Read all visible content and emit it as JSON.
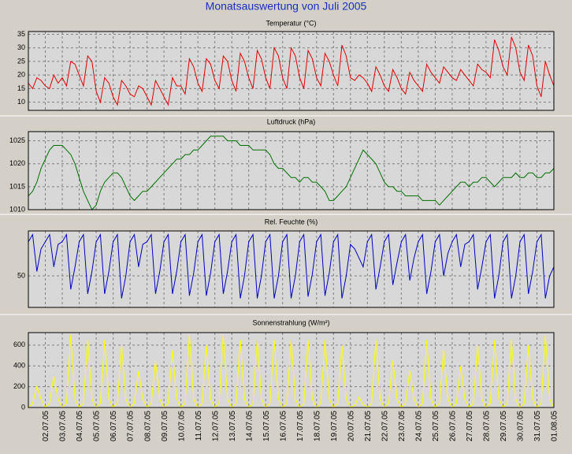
{
  "title": "Monatsauswertung von Juli 2005",
  "chart_data": [
    {
      "type": "line",
      "title": "Temperatur (°C)",
      "color": "#e00000",
      "xlim": [
        0,
        31
      ],
      "ylim": [
        7,
        36
      ],
      "yticks": [
        10,
        15,
        20,
        25,
        30,
        35
      ],
      "grid": true,
      "xticks": [
        1,
        2,
        3,
        4,
        5,
        6,
        7,
        8,
        9,
        10,
        11,
        12,
        13,
        14,
        15,
        16,
        17,
        18,
        19,
        20,
        21,
        22,
        23,
        24,
        25,
        26,
        27,
        28,
        29,
        30,
        31
      ],
      "x": [
        0,
        0.25,
        0.5,
        0.75,
        1,
        1.25,
        1.5,
        1.75,
        2,
        2.25,
        2.5,
        2.75,
        3,
        3.25,
        3.5,
        3.75,
        4,
        4.25,
        4.5,
        4.75,
        5,
        5.25,
        5.5,
        5.75,
        6,
        6.25,
        6.5,
        6.75,
        7,
        7.25,
        7.5,
        7.75,
        8,
        8.25,
        8.5,
        8.75,
        9,
        9.25,
        9.5,
        9.75,
        10,
        10.25,
        10.5,
        10.75,
        11,
        11.25,
        11.5,
        11.75,
        12,
        12.25,
        12.5,
        12.75,
        13,
        13.25,
        13.5,
        13.75,
        14,
        14.25,
        14.5,
        14.75,
        15,
        15.25,
        15.5,
        15.75,
        16,
        16.25,
        16.5,
        16.75,
        17,
        17.25,
        17.5,
        17.75,
        18,
        18.25,
        18.5,
        18.75,
        19,
        19.25,
        19.5,
        19.75,
        20,
        20.25,
        20.5,
        20.75,
        21,
        21.25,
        21.5,
        21.75,
        22,
        22.25,
        22.5,
        22.75,
        23,
        23.25,
        23.5,
        23.75,
        24,
        24.25,
        24.5,
        24.75,
        25,
        25.25,
        25.5,
        25.75,
        26,
        26.25,
        26.5,
        26.75,
        27,
        27.25,
        27.5,
        27.75,
        28,
        28.25,
        28.5,
        28.75,
        29,
        29.25,
        29.5,
        29.75,
        30,
        30.25,
        30.5,
        30.75,
        31
      ],
      "values": [
        17,
        15,
        19,
        18,
        16,
        15,
        20,
        17,
        19,
        16,
        25,
        24,
        20,
        16,
        27,
        25,
        14,
        10,
        19,
        17,
        12,
        9,
        18,
        16,
        13,
        12,
        16,
        15,
        12,
        9,
        18,
        15,
        12,
        9,
        19,
        16,
        16,
        13,
        26,
        23,
        17,
        14,
        26,
        24,
        18,
        15,
        27,
        25,
        18,
        14,
        28,
        25,
        19,
        15,
        29,
        26,
        19,
        15,
        30,
        27,
        19,
        15,
        30,
        27,
        19,
        15,
        29,
        26,
        19,
        16,
        28,
        25,
        20,
        16,
        31,
        27,
        19,
        18,
        20,
        19,
        17,
        14,
        23,
        20,
        16,
        14,
        22,
        19,
        15,
        13,
        21,
        18,
        16,
        14,
        24,
        21,
        19,
        17,
        23,
        21,
        19,
        18,
        22,
        20,
        18,
        16,
        24,
        22,
        21,
        19,
        33,
        29,
        23,
        20,
        34,
        30,
        21,
        18,
        31,
        27,
        16,
        12,
        25,
        20,
        16
      ]
    },
    {
      "type": "line",
      "title": "Luftdruck (hPa)",
      "color": "#007000",
      "xlim": [
        0,
        31
      ],
      "ylim": [
        1010,
        1027
      ],
      "yticks": [
        1010,
        1015,
        1020,
        1025
      ],
      "grid": true,
      "xticks": [
        1,
        2,
        3,
        4,
        5,
        6,
        7,
        8,
        9,
        10,
        11,
        12,
        13,
        14,
        15,
        16,
        17,
        18,
        19,
        20,
        21,
        22,
        23,
        24,
        25,
        26,
        27,
        28,
        29,
        30,
        31
      ],
      "x": [
        0,
        0.25,
        0.5,
        0.75,
        1,
        1.25,
        1.5,
        1.75,
        2,
        2.25,
        2.5,
        2.75,
        3,
        3.25,
        3.5,
        3.75,
        4,
        4.25,
        4.5,
        4.75,
        5,
        5.25,
        5.5,
        5.75,
        6,
        6.25,
        6.5,
        6.75,
        7,
        7.25,
        7.5,
        7.75,
        8,
        8.25,
        8.5,
        8.75,
        9,
        9.25,
        9.5,
        9.75,
        10,
        10.25,
        10.5,
        10.75,
        11,
        11.25,
        11.5,
        11.75,
        12,
        12.25,
        12.5,
        12.75,
        13,
        13.25,
        13.5,
        13.75,
        14,
        14.25,
        14.5,
        14.75,
        15,
        15.25,
        15.5,
        15.75,
        16,
        16.25,
        16.5,
        16.75,
        17,
        17.25,
        17.5,
        17.75,
        18,
        18.25,
        18.5,
        18.75,
        19,
        19.25,
        19.5,
        19.75,
        20,
        20.25,
        20.5,
        20.75,
        21,
        21.25,
        21.5,
        21.75,
        22,
        22.25,
        22.5,
        22.75,
        23,
        23.25,
        23.5,
        23.75,
        24,
        24.25,
        24.5,
        24.75,
        25,
        25.25,
        25.5,
        25.75,
        26,
        26.25,
        26.5,
        26.75,
        27,
        27.25,
        27.5,
        27.75,
        28,
        28.25,
        28.5,
        28.75,
        29,
        29.25,
        29.5,
        29.75,
        30,
        30.25,
        30.5,
        30.75,
        31
      ],
      "values": [
        1013,
        1014,
        1016,
        1019,
        1021,
        1023,
        1024,
        1024,
        1024,
        1023,
        1022,
        1020,
        1017,
        1014,
        1012,
        1010,
        1011,
        1014,
        1016,
        1017,
        1018,
        1018,
        1017,
        1015,
        1013,
        1012,
        1013,
        1014,
        1014,
        1015,
        1016,
        1017,
        1018,
        1019,
        1020,
        1021,
        1021,
        1022,
        1022,
        1023,
        1023,
        1024,
        1025,
        1026,
        1026,
        1026,
        1026,
        1025,
        1025,
        1025,
        1024,
        1024,
        1024,
        1023,
        1023,
        1023,
        1023,
        1022,
        1020,
        1019,
        1019,
        1018,
        1017,
        1017,
        1016,
        1017,
        1017,
        1016,
        1016,
        1015,
        1014,
        1012,
        1012,
        1013,
        1014,
        1015,
        1017,
        1019,
        1021,
        1023,
        1022,
        1021,
        1020,
        1018,
        1016,
        1015,
        1015,
        1014,
        1014,
        1013,
        1013,
        1013,
        1013,
        1012,
        1012,
        1012,
        1012,
        1011,
        1012,
        1013,
        1014,
        1015,
        1016,
        1016,
        1015,
        1016,
        1016,
        1017,
        1017,
        1016,
        1015,
        1016,
        1017,
        1017,
        1017,
        1018,
        1017,
        1017,
        1018,
        1018,
        1017,
        1017,
        1018,
        1018,
        1019
      ]
    },
    {
      "type": "line",
      "title": "Rel. Feuchte (%)",
      "color": "#0000c0",
      "xlim": [
        0,
        31
      ],
      "ylim": [
        15,
        100
      ],
      "yticks": [
        50
      ],
      "grid": true,
      "xticks": [
        1,
        2,
        3,
        4,
        5,
        6,
        7,
        8,
        9,
        10,
        11,
        12,
        13,
        14,
        15,
        16,
        17,
        18,
        19,
        20,
        21,
        22,
        23,
        24,
        25,
        26,
        27,
        28,
        29,
        30,
        31
      ],
      "x": [
        0,
        0.25,
        0.5,
        0.75,
        1,
        1.25,
        1.5,
        1.75,
        2,
        2.25,
        2.5,
        2.75,
        3,
        3.25,
        3.5,
        3.75,
        4,
        4.25,
        4.5,
        4.75,
        5,
        5.25,
        5.5,
        5.75,
        6,
        6.25,
        6.5,
        6.75,
        7,
        7.25,
        7.5,
        7.75,
        8,
        8.25,
        8.5,
        8.75,
        9,
        9.25,
        9.5,
        9.75,
        10,
        10.25,
        10.5,
        10.75,
        11,
        11.25,
        11.5,
        11.75,
        12,
        12.25,
        12.5,
        12.75,
        13,
        13.25,
        13.5,
        13.75,
        14,
        14.25,
        14.5,
        14.75,
        15,
        15.25,
        15.5,
        15.75,
        16,
        16.25,
        16.5,
        16.75,
        17,
        17.25,
        17.5,
        17.75,
        18,
        18.25,
        18.5,
        18.75,
        19,
        19.25,
        19.5,
        19.75,
        20,
        20.25,
        20.5,
        20.75,
        21,
        21.25,
        21.5,
        21.75,
        22,
        22.25,
        22.5,
        22.75,
        23,
        23.25,
        23.5,
        23.75,
        24,
        24.25,
        24.5,
        24.75,
        25,
        25.25,
        25.5,
        25.75,
        26,
        26.25,
        26.5,
        26.75,
        27,
        27.25,
        27.5,
        27.75,
        28,
        28.25,
        28.5,
        28.75,
        29,
        29.25,
        29.5,
        29.75,
        30,
        30.25,
        30.5,
        30.75,
        31
      ],
      "values": [
        88,
        96,
        55,
        80,
        88,
        96,
        60,
        85,
        88,
        96,
        35,
        60,
        88,
        96,
        30,
        55,
        88,
        96,
        30,
        55,
        88,
        96,
        25,
        50,
        88,
        96,
        60,
        85,
        88,
        96,
        30,
        55,
        88,
        96,
        30,
        55,
        88,
        96,
        28,
        53,
        88,
        96,
        28,
        53,
        88,
        96,
        30,
        55,
        88,
        96,
        25,
        50,
        88,
        96,
        25,
        50,
        88,
        96,
        25,
        50,
        88,
        96,
        25,
        50,
        88,
        96,
        27,
        52,
        88,
        96,
        28,
        53,
        88,
        96,
        25,
        50,
        85,
        80,
        70,
        60,
        88,
        96,
        35,
        60,
        88,
        96,
        40,
        65,
        88,
        96,
        45,
        70,
        88,
        96,
        30,
        55,
        88,
        96,
        50,
        75,
        88,
        96,
        60,
        85,
        88,
        96,
        35,
        60,
        88,
        96,
        25,
        50,
        88,
        96,
        25,
        50,
        88,
        96,
        30,
        55,
        88,
        96,
        25,
        50,
        60
      ]
    },
    {
      "type": "line",
      "title": "Sonnenstrahlung (W/m²)",
      "color": "#ffff00",
      "xlim": [
        0,
        31
      ],
      "ylim": [
        0,
        720
      ],
      "yticks": [
        0,
        200,
        400,
        600
      ],
      "grid": true,
      "xticks": [
        {
          "value": 1,
          "label": "02.07.05"
        },
        {
          "value": 2,
          "label": "03.07.05"
        },
        {
          "value": 3,
          "label": "04.07.05"
        },
        {
          "value": 4,
          "label": "05.07.05"
        },
        {
          "value": 5,
          "label": "06.07.05"
        },
        {
          "value": 6,
          "label": "07.07.05"
        },
        {
          "value": 7,
          "label": "08.07.05"
        },
        {
          "value": 8,
          "label": "09.07.05"
        },
        {
          "value": 9,
          "label": "10.07.05"
        },
        {
          "value": 10,
          "label": "11.07.05"
        },
        {
          "value": 11,
          "label": "12.07.05"
        },
        {
          "value": 12,
          "label": "13.07.05"
        },
        {
          "value": 13,
          "label": "14.07.05"
        },
        {
          "value": 14,
          "label": "15.07.05"
        },
        {
          "value": 15,
          "label": "16.07.05"
        },
        {
          "value": 16,
          "label": "17.07.05"
        },
        {
          "value": 17,
          "label": "18.07.05"
        },
        {
          "value": 18,
          "label": "19.07.05"
        },
        {
          "value": 19,
          "label": "20.07.05"
        },
        {
          "value": 20,
          "label": "21.07.05"
        },
        {
          "value": 21,
          "label": "22.07.05"
        },
        {
          "value": 22,
          "label": "23.07.05"
        },
        {
          "value": 23,
          "label": "24.07.05"
        },
        {
          "value": 24,
          "label": "25.07.05"
        },
        {
          "value": 25,
          "label": "26.07.05"
        },
        {
          "value": 26,
          "label": "27.07.05"
        },
        {
          "value": 27,
          "label": "28.07.05"
        },
        {
          "value": 28,
          "label": "29.07.05"
        },
        {
          "value": 29,
          "label": "30.07.05"
        },
        {
          "value": 30,
          "label": "31.07.05"
        },
        {
          "value": 31,
          "label": "01.08.05"
        }
      ],
      "x": [
        0,
        0.25,
        0.5,
        0.75,
        1,
        1.25,
        1.5,
        1.75,
        2,
        2.25,
        2.5,
        2.75,
        3,
        3.25,
        3.5,
        3.75,
        4,
        4.25,
        4.5,
        4.75,
        5,
        5.25,
        5.5,
        5.75,
        6,
        6.25,
        6.5,
        6.75,
        7,
        7.25,
        7.5,
        7.75,
        8,
        8.25,
        8.5,
        8.75,
        9,
        9.25,
        9.5,
        9.75,
        10,
        10.25,
        10.5,
        10.75,
        11,
        11.25,
        11.5,
        11.75,
        12,
        12.25,
        12.5,
        12.75,
        13,
        13.25,
        13.5,
        13.75,
        14,
        14.25,
        14.5,
        14.75,
        15,
        15.25,
        15.5,
        15.75,
        16,
        16.25,
        16.5,
        16.75,
        17,
        17.25,
        17.5,
        17.75,
        18,
        18.25,
        18.5,
        18.75,
        19,
        19.25,
        19.5,
        19.75,
        20,
        20.25,
        20.5,
        20.75,
        21,
        21.25,
        21.5,
        21.75,
        22,
        22.25,
        22.5,
        22.75,
        23,
        23.25,
        23.5,
        23.75,
        24,
        24.25,
        24.5,
        24.75,
        25,
        25.25,
        25.5,
        25.75,
        26,
        26.25,
        26.5,
        26.75,
        27,
        27.25,
        27.5,
        27.75,
        28,
        28.25,
        28.5,
        28.75,
        29,
        29.25,
        29.5,
        29.75,
        30,
        30.25,
        30.5,
        30.75,
        31
      ],
      "values": [
        0,
        40,
        200,
        80,
        0,
        40,
        300,
        80,
        0,
        40,
        700,
        80,
        0,
        40,
        650,
        80,
        0,
        40,
        650,
        80,
        0,
        40,
        600,
        80,
        0,
        40,
        350,
        80,
        0,
        40,
        450,
        80,
        0,
        40,
        550,
        80,
        0,
        40,
        700,
        80,
        0,
        40,
        600,
        80,
        0,
        40,
        700,
        80,
        0,
        40,
        650,
        80,
        0,
        40,
        650,
        80,
        0,
        40,
        650,
        80,
        0,
        40,
        650,
        80,
        0,
        40,
        650,
        80,
        0,
        40,
        650,
        80,
        0,
        40,
        600,
        80,
        0,
        20,
        100,
        30,
        0,
        40,
        650,
        80,
        0,
        40,
        450,
        80,
        0,
        40,
        350,
        80,
        0,
        40,
        650,
        80,
        0,
        40,
        550,
        80,
        0,
        40,
        400,
        80,
        0,
        40,
        600,
        80,
        0,
        40,
        650,
        80,
        0,
        40,
        650,
        80,
        0,
        40,
        600,
        80,
        0,
        40,
        700,
        80,
        0
      ]
    }
  ]
}
